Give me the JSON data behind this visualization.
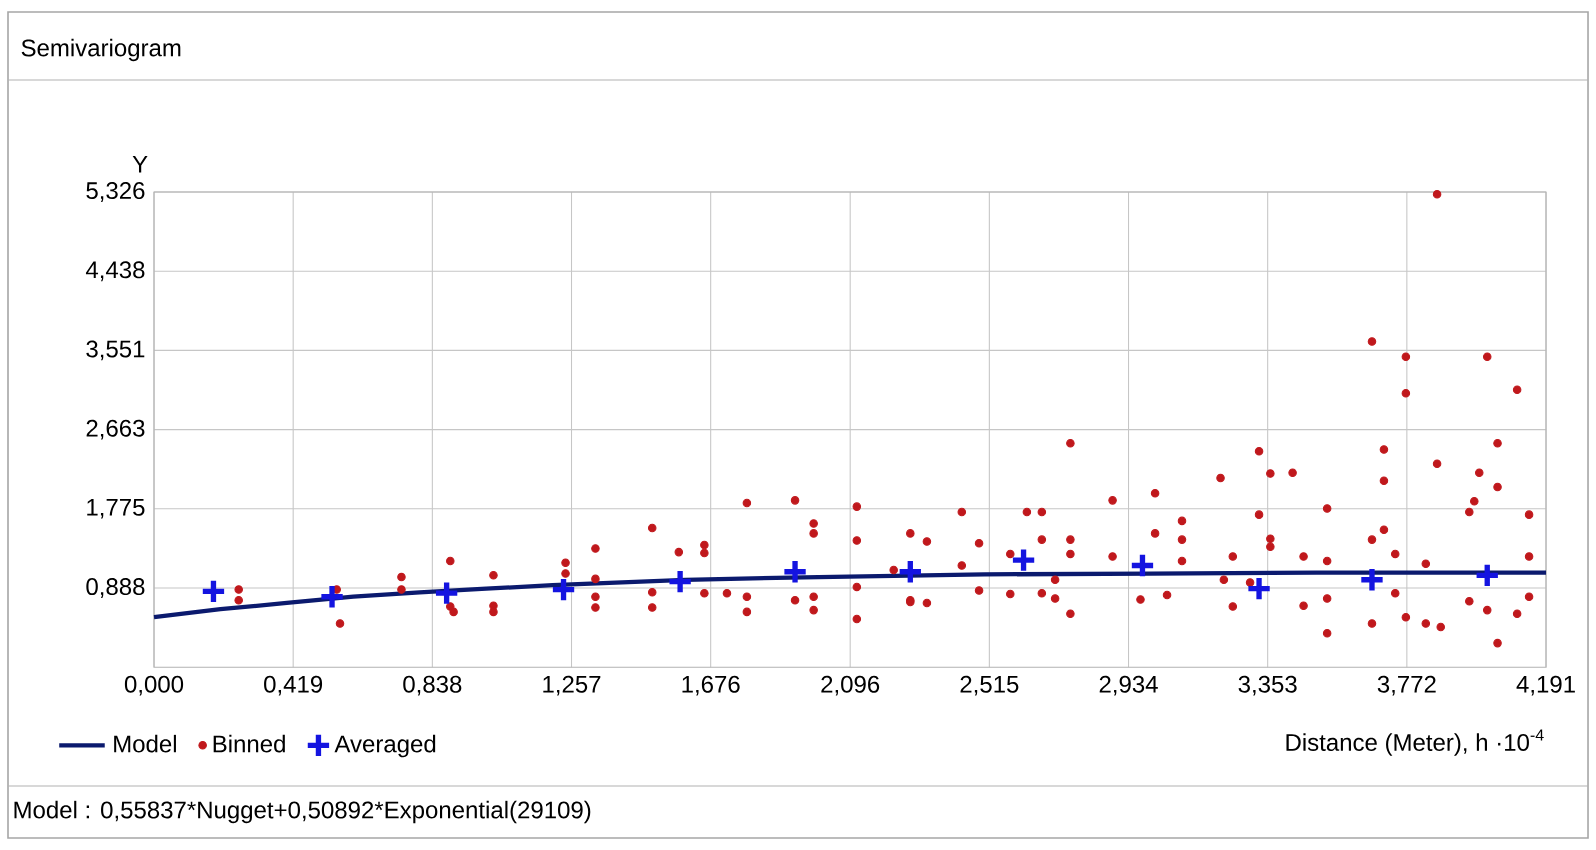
{
  "chart_data": {
    "type": "scatter",
    "title": "Semivariogram",
    "xlabel": "Distance (Meter), h ·10$^{-4}$",
    "ylabel": "Y",
    "annotations": [
      "Model : 0,55837*Nugget+0,50892*Exponential(29109)"
    ],
    "xlim": [
      0,
      4.191
    ],
    "ylim": [
      0,
      5.326
    ],
    "xticks": [
      {
        "value": 0,
        "label": "0,000"
      },
      {
        "value": 0.419,
        "label": "0,419"
      },
      {
        "value": 0.838,
        "label": "0,838"
      },
      {
        "value": 1.257,
        "label": "1,257"
      },
      {
        "value": 1.676,
        "label": "1,676"
      },
      {
        "value": 2.096,
        "label": "2,096"
      },
      {
        "value": 2.515,
        "label": "2,515"
      },
      {
        "value": 2.934,
        "label": "2,934"
      },
      {
        "value": 3.353,
        "label": "3,353"
      },
      {
        "value": 3.772,
        "label": "3,772"
      },
      {
        "value": 4.191,
        "label": "4,191"
      }
    ],
    "yticks": [
      {
        "value": 0.888,
        "label": "0,888"
      },
      {
        "value": 1.775,
        "label": "1,775"
      },
      {
        "value": 2.663,
        "label": "2,663"
      },
      {
        "value": 3.551,
        "label": "3,551"
      },
      {
        "value": 4.438,
        "label": "4,438"
      },
      {
        "value": 5.326,
        "label": "5,326"
      }
    ],
    "grid": true,
    "legend": "bottom left",
    "series": [
      {
        "name": "Model",
        "type": "line",
        "marker": "none",
        "color": "#0b1a6e",
        "x": [
          0,
          0.2,
          0.4,
          0.6,
          0.8,
          1.0,
          1.2,
          1.6,
          2.0,
          2.5,
          3.0,
          3.5,
          4.191
        ],
        "values": [
          0.56,
          0.65,
          0.72,
          0.79,
          0.84,
          0.88,
          0.92,
          0.98,
          1.01,
          1.04,
          1.05,
          1.06,
          1.06
        ]
      },
      {
        "name": "Binned",
        "marker": "circle",
        "color": "#c0181c",
        "x": [
          0.255,
          0.255,
          0.55,
          0.56,
          0.745,
          0.745,
          0.892,
          0.892,
          0.902,
          1.022,
          1.022,
          1.022,
          1.239,
          1.239,
          1.329,
          1.329,
          1.329,
          1.329,
          1.5,
          1.5,
          1.5,
          1.58,
          1.657,
          1.657,
          1.657,
          1.725,
          1.785,
          1.785,
          1.785,
          1.93,
          1.93,
          1.986,
          1.986,
          1.986,
          1.986,
          2.116,
          2.116,
          2.116,
          2.116,
          2.227,
          2.277,
          2.277,
          2.327,
          2.327,
          2.277,
          2.432,
          2.432,
          2.484,
          2.484,
          2.578,
          2.578,
          2.628,
          2.673,
          2.673,
          2.673,
          2.713,
          2.713,
          2.759,
          2.759,
          2.759,
          2.759,
          2.886,
          2.886,
          2.97,
          3.014,
          3.014,
          3.05,
          3.095,
          3.095,
          3.095,
          3.211,
          3.221,
          3.248,
          3.248,
          3.3,
          3.327,
          3.327,
          3.361,
          3.361,
          3.361,
          3.428,
          3.461,
          3.461,
          3.532,
          3.532,
          3.532,
          3.532,
          3.667,
          3.703,
          3.703,
          3.703,
          3.667,
          3.667,
          3.737,
          3.737,
          3.769,
          3.769,
          3.769,
          3.829,
          3.829,
          3.863,
          3.863,
          3.874,
          3.96,
          3.96,
          3.975,
          3.99,
          4.014,
          4.045,
          4.045,
          4.014,
          4.045,
          4.104,
          4.104,
          4.14,
          4.14,
          4.14
        ],
        "values": [
          0.87,
          0.75,
          0.87,
          0.49,
          1.01,
          0.87,
          1.19,
          0.68,
          0.62,
          1.03,
          0.69,
          0.62,
          1.17,
          1.05,
          1.33,
          0.99,
          0.79,
          0.67,
          1.56,
          0.84,
          0.67,
          1.29,
          1.37,
          1.28,
          0.83,
          0.83,
          1.84,
          0.79,
          0.62,
          1.87,
          0.75,
          1.61,
          1.5,
          0.79,
          0.64,
          1.8,
          1.42,
          0.9,
          0.54,
          1.09,
          1.5,
          0.75,
          1.41,
          0.72,
          0.73,
          1.74,
          1.14,
          1.39,
          0.86,
          0.82,
          1.27,
          1.74,
          1.74,
          1.43,
          0.83,
          0.98,
          0.77,
          2.51,
          1.43,
          1.27,
          0.6,
          1.87,
          1.24,
          0.76,
          1.95,
          1.5,
          0.81,
          1.64,
          1.43,
          1.19,
          2.12,
          0.98,
          1.24,
          0.68,
          0.95,
          2.42,
          1.71,
          2.17,
          1.44,
          1.35,
          2.18,
          1.24,
          0.69,
          1.78,
          1.19,
          0.77,
          0.38,
          3.65,
          2.44,
          2.09,
          1.54,
          1.43,
          0.49,
          1.27,
          0.83,
          3.48,
          3.07,
          0.56,
          1.16,
          0.49,
          5.3,
          2.28,
          0.45,
          1.74,
          0.74,
          1.86,
          2.18,
          3.48,
          2.51,
          2.02,
          0.64,
          0.27,
          3.11,
          0.6,
          1.71,
          1.24,
          0.79
        ]
      },
      {
        "name": "Averaged",
        "marker": "cross",
        "color": "#1414e0",
        "x": [
          0.179,
          0.536,
          0.881,
          1.233,
          1.584,
          1.93,
          2.277,
          2.618,
          2.976,
          3.327,
          3.667,
          4.014
        ],
        "values": [
          0.85,
          0.79,
          0.83,
          0.87,
          0.96,
          1.07,
          1.07,
          1.2,
          1.14,
          0.88,
          0.98,
          1.03
        ]
      }
    ]
  }
}
